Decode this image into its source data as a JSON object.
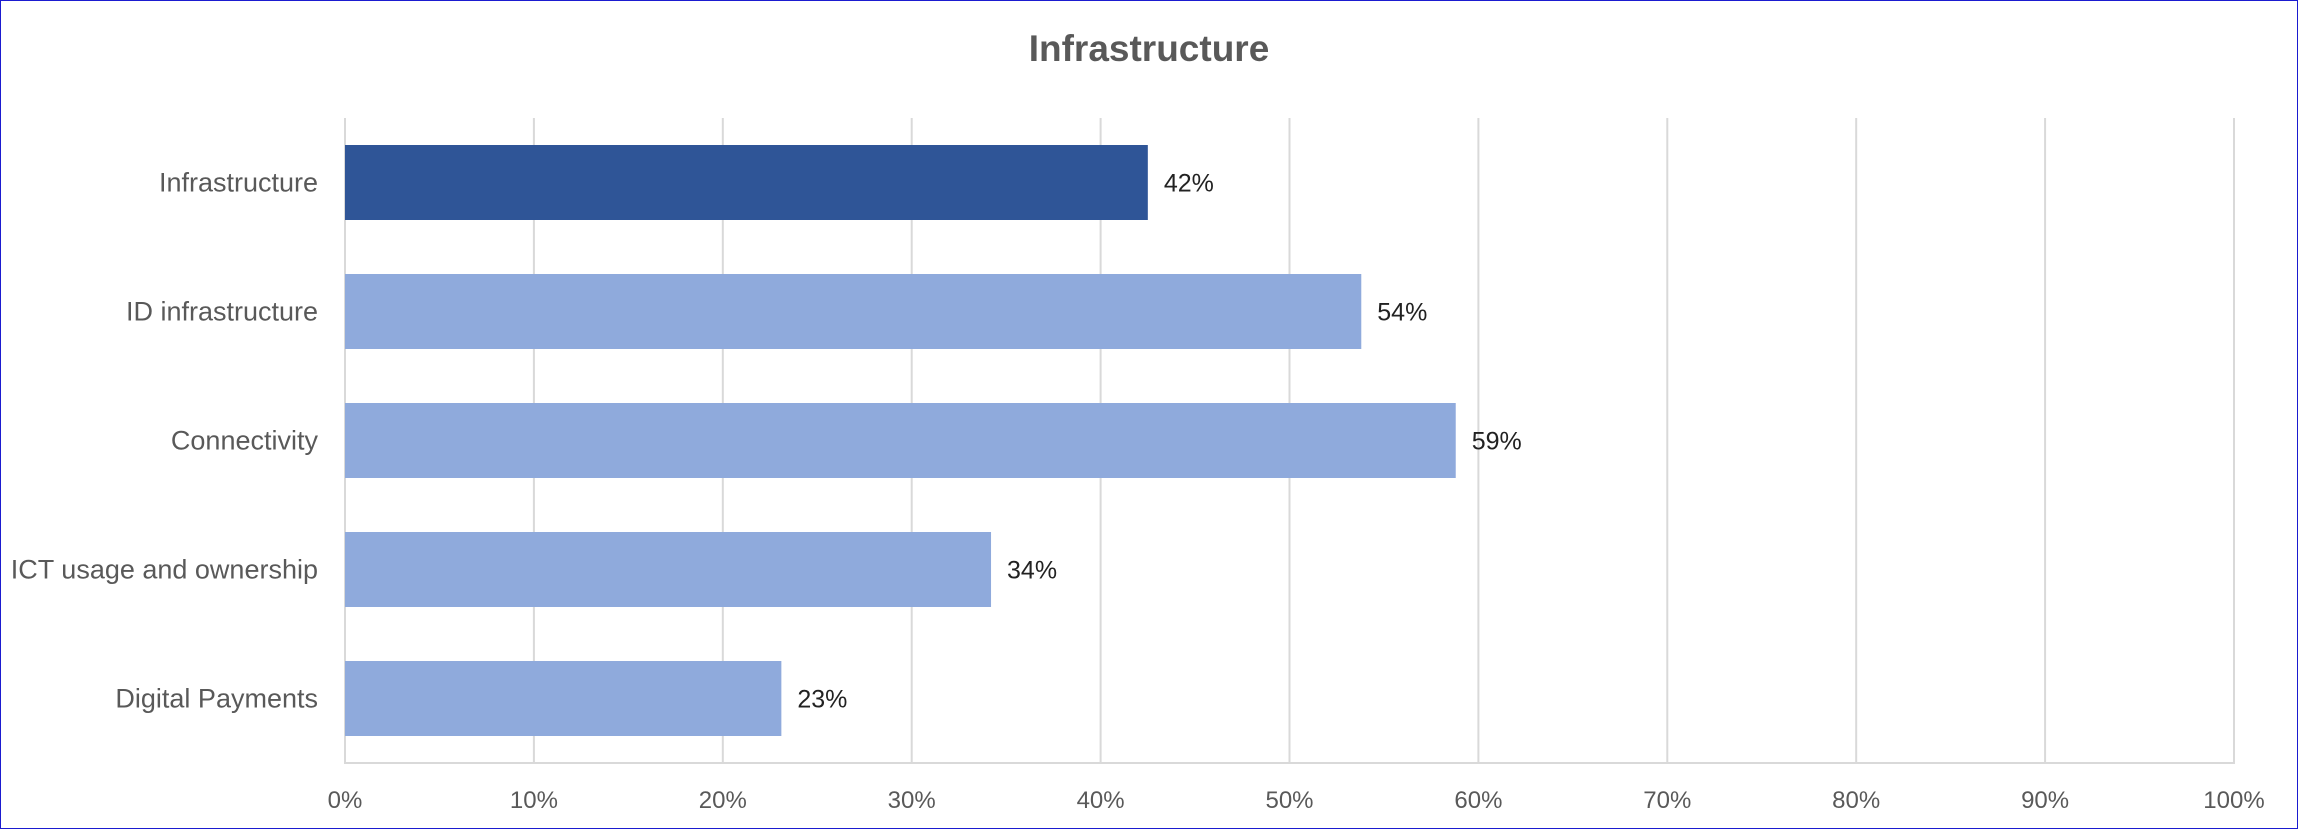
{
  "chart_data": {
    "type": "bar",
    "orientation": "horizontal",
    "title": "Infrastructure",
    "categories": [
      "Infrastructure",
      "ID infrastructure",
      "Connectivity",
      "ICT usage and ownership",
      "Digital Payments"
    ],
    "values": [
      42.5,
      53.8,
      58.8,
      34.2,
      23.1
    ],
    "data_labels": [
      "42%",
      "54%",
      "59%",
      "34%",
      "23%"
    ],
    "highlight_index": 0,
    "colors": {
      "highlight": "#2f5597",
      "bar": "#8faadc",
      "grid": "#d9d9d9"
    },
    "xlim": [
      0,
      100
    ],
    "x_ticks": [
      "0%",
      "10%",
      "20%",
      "30%",
      "40%",
      "50%",
      "60%",
      "70%",
      "80%",
      "90%",
      "100%"
    ],
    "grid": true,
    "legend": "none",
    "xlabel": "",
    "ylabel": ""
  }
}
